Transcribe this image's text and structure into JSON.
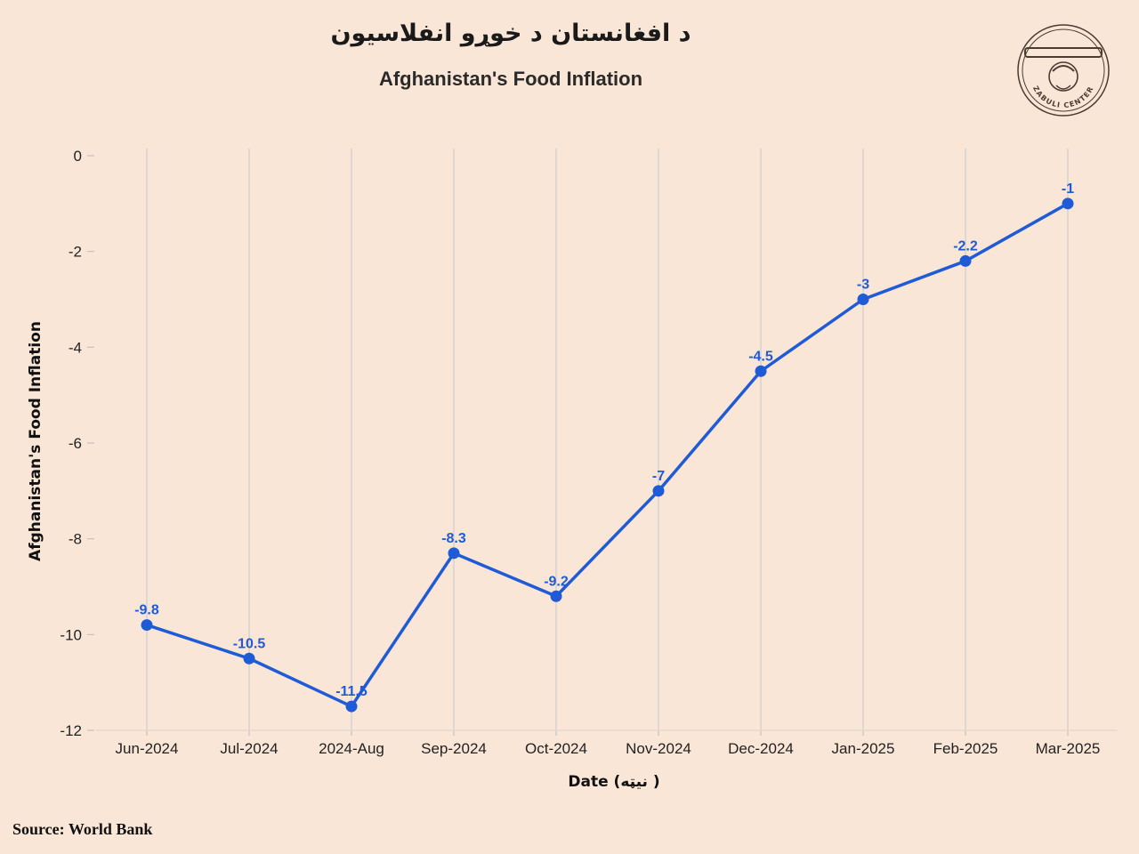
{
  "header": {
    "title_pashto": "د افغانستان د خوړو انفلاسیون",
    "title_english": "Afghanistan's Food Inflation"
  },
  "logo": {
    "icon": "zabuli-center-seal-icon",
    "text": "ZABULI CENTER"
  },
  "footer": {
    "source": "Source: World Bank"
  },
  "colors": {
    "background": "#fae6d7",
    "line": "#1f5bd6",
    "grid": "#d6d3d0"
  },
  "chart_data": {
    "type": "line",
    "title": "Afghanistan's Food Inflation",
    "xlabel": "Date (نیټه )",
    "ylabel": "Afghanistan's Food Inflation",
    "categories": [
      "Jun-2024",
      "Jul-2024",
      "2024-Aug",
      "Sep-2024",
      "Oct-2024",
      "Nov-2024",
      "Dec-2024",
      "Jan-2025",
      "Feb-2025",
      "Mar-2025"
    ],
    "values": [
      -9.8,
      -10.5,
      -11.5,
      -8.3,
      -9.2,
      -7,
      -4.5,
      -3,
      -2.2,
      -1
    ],
    "data_labels": [
      "-9.8",
      "-10.5",
      "-11.5",
      "-8.3",
      "-9.2",
      "-7",
      "-4.5",
      "-3",
      "-2.2",
      "-1"
    ],
    "ylim": [
      -12,
      0
    ],
    "yticks": [
      0,
      -2,
      -4,
      -6,
      -8,
      -10,
      -12
    ],
    "ytick_labels": [
      "0",
      "-2",
      "-4",
      "-6",
      "-8",
      "-10",
      "-12"
    ],
    "grid": "vertical",
    "legend": "none"
  }
}
